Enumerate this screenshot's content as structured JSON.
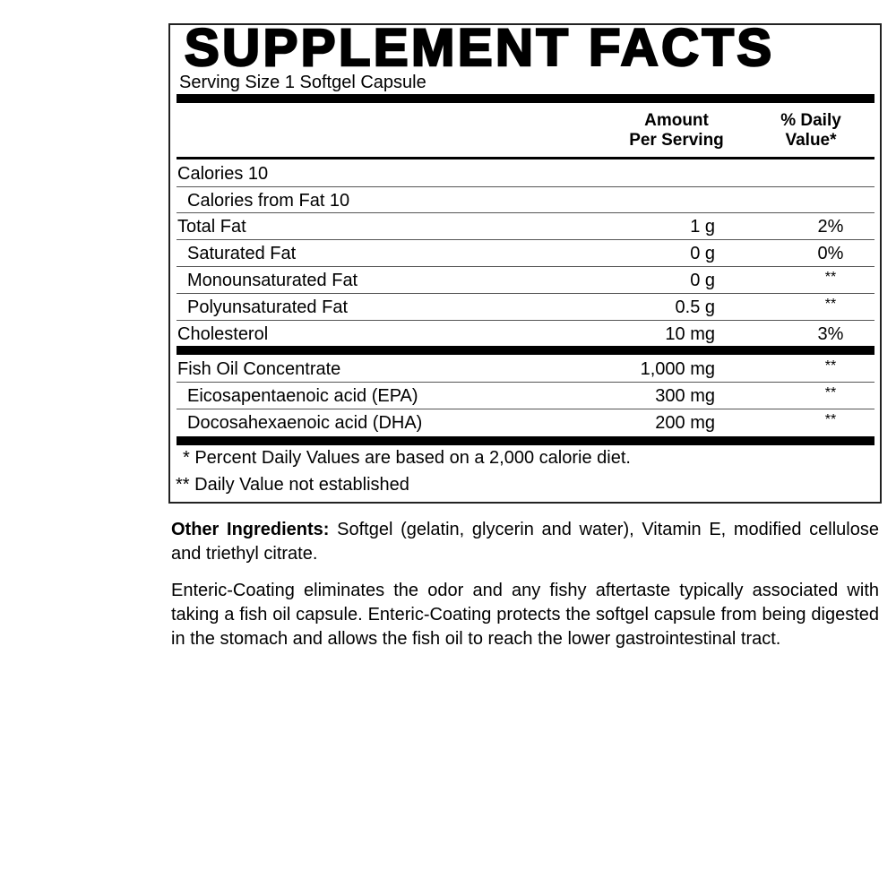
{
  "title": "SUPPLEMENT FACTS",
  "serving_size": "Serving Size 1 Softgel Capsule",
  "headers": {
    "amount": "Amount Per Serving",
    "amount_l1": "Amount",
    "amount_l2": "Per Serving",
    "dv_l1": "% Daily",
    "dv_l2": "Value*"
  },
  "rows": [
    {
      "name": "Calories 10",
      "amount": "",
      "dv": ""
    },
    {
      "name": "Calories from Fat 10",
      "amount": "",
      "dv": ""
    },
    {
      "name": "Total Fat",
      "amount": "1 g",
      "dv": "2%"
    },
    {
      "name": "Saturated Fat",
      "amount": "0 g",
      "dv": "0%"
    },
    {
      "name": "Monounsaturated Fat",
      "amount": "0 g",
      "dv": "**"
    },
    {
      "name": "Polyunsaturated Fat",
      "amount": "0.5 g",
      "dv": "**"
    },
    {
      "name": "Cholesterol",
      "amount": "10 mg",
      "dv": "3%"
    },
    {
      "name": "Fish Oil Concentrate",
      "amount": "1,000 mg",
      "dv": "**"
    },
    {
      "name": "Eicosapentaenoic acid (EPA)",
      "amount": "300 mg",
      "dv": "**"
    },
    {
      "name": "Docosahexaenoic acid (DHA)",
      "amount": "200 mg",
      "dv": "**"
    }
  ],
  "footnotes": [
    "* Percent Daily Values are based on a 2,000 calorie diet.",
    "** Daily Value not established"
  ],
  "other_ingredients": {
    "label": "Other Ingredients:",
    "text": " Softgel (gelatin, glycerin and water), Vitamin E, modified cellulose and triethyl citrate."
  },
  "description": "Enteric-Coating eliminates the odor and any fishy aftertaste typically associated with taking a fish oil capsule. Enteric-Coating protects the softgel capsule from being digested in the stomach and allows the fish oil to reach the lower gastrointestinal tract."
}
